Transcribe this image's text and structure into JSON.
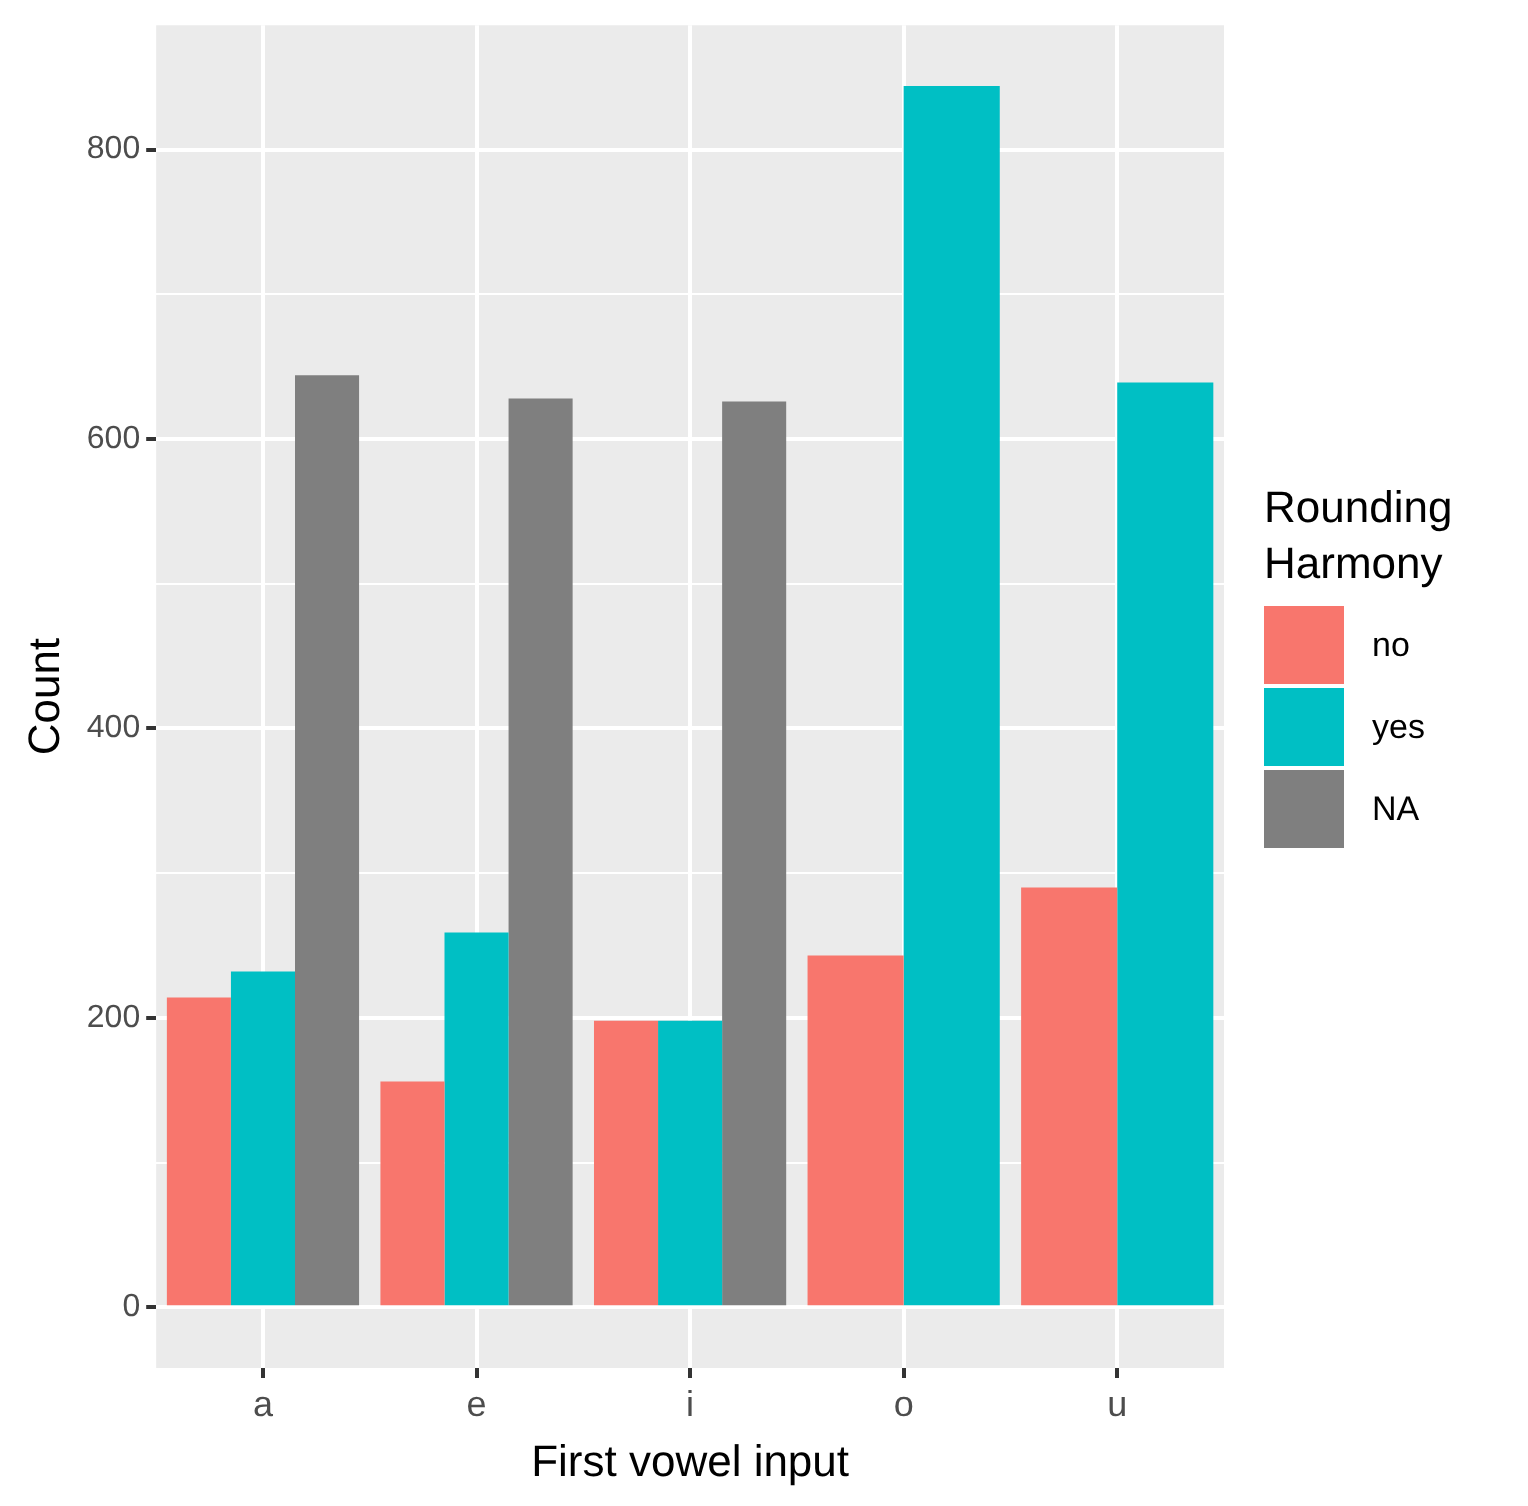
{
  "chart_data": {
    "type": "bar",
    "xlabel": "First vowel input",
    "ylabel": "Count",
    "legend_title": "Rounding Harmony",
    "legend": "right",
    "categories": [
      "a",
      "e",
      "i",
      "o",
      "u"
    ],
    "series": [
      {
        "name": "no",
        "color": "#f8766d",
        "values": [
          214,
          156,
          198,
          243,
          290
        ]
      },
      {
        "name": "yes",
        "color": "#00bfc4",
        "values": [
          232,
          259,
          198,
          844,
          639
        ]
      },
      {
        "name": "NA",
        "color": "#7f7f7f",
        "values": [
          644,
          628,
          626,
          null,
          null
        ]
      }
    ],
    "ylim": [
      -42,
      886
    ],
    "yticks": [
      0,
      {
        "value": 100,
        "label": null
      },
      200,
      {
        "value": 300,
        "label": null
      },
      400,
      {
        "value": 500,
        "label": null
      },
      600,
      {
        "value": 700,
        "label": null
      },
      800
    ],
    "grid": true
  }
}
